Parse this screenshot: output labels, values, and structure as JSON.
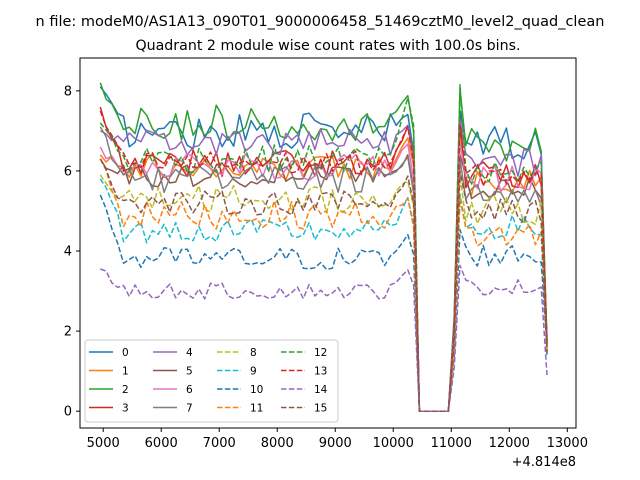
{
  "chart_data": {
    "type": "line",
    "suptitle": "n file: modeM0/AS1A13_090T01_9000006458_51469cztM0_level2_quad_clean",
    "title": "Quadrant 2 module wise count rates with 100.0s bins.",
    "xlabel": "",
    "ylabel": "",
    "x_offset_label": "+4.814e8",
    "xlim": [
      4600,
      13150
    ],
    "ylim": [
      -0.42,
      8.82
    ],
    "xticks": [
      5000,
      6000,
      7000,
      8000,
      9000,
      10000,
      11000,
      12000,
      13000
    ],
    "xtick_labels": [
      "5000",
      "6000",
      "7000",
      "8000",
      "9000",
      "10000",
      "11000",
      "12000",
      "13000"
    ],
    "yticks": [
      0,
      2,
      4,
      6,
      8
    ],
    "ytick_labels": [
      "0",
      "2",
      "4",
      "6",
      "8"
    ],
    "legend_position": "lower-left",
    "segments": {
      "seg1": {
        "start": 4950,
        "end": 10350,
        "step": 100
      },
      "gap_x": [
        10450,
        10550,
        10650,
        10750,
        10850,
        10950
      ],
      "seg2": {
        "start": 11050,
        "end": 12650,
        "step": 100
      }
    },
    "series": [
      {
        "name": "0",
        "color": "#1f77b4",
        "dash": "solid",
        "level1": 7.0,
        "level2": 6.7,
        "amp": 0.45,
        "startv": 8.1,
        "peak": 7.6
      },
      {
        "name": "1",
        "color": "#ff7f0e",
        "dash": "solid",
        "level1": 6.1,
        "level2": 5.7,
        "amp": 0.35,
        "startv": 6.4,
        "peak": 7.2
      },
      {
        "name": "2",
        "color": "#2ca02c",
        "dash": "solid",
        "level1": 7.2,
        "level2": 6.7,
        "amp": 0.45,
        "startv": 8.2,
        "peak": 8.2
      },
      {
        "name": "3",
        "color": "#d62728",
        "dash": "solid",
        "level1": 6.2,
        "level2": 5.9,
        "amp": 0.35,
        "startv": 7.6,
        "peak": 7.5
      },
      {
        "name": "4",
        "color": "#9467bd",
        "dash": "solid",
        "level1": 6.7,
        "level2": 6.2,
        "amp": 0.35,
        "startv": 7.0,
        "peak": 7.4
      },
      {
        "name": "5",
        "color": "#8c564b",
        "dash": "solid",
        "level1": 5.9,
        "level2": 5.6,
        "amp": 0.3,
        "startv": 6.3,
        "peak": 6.5
      },
      {
        "name": "6",
        "color": "#e377c2",
        "dash": "solid",
        "level1": 6.1,
        "level2": 5.8,
        "amp": 0.35,
        "startv": 6.6,
        "peak": 6.8
      },
      {
        "name": "7",
        "color": "#7f7f7f",
        "dash": "solid",
        "level1": 5.8,
        "level2": 5.4,
        "amp": 0.35,
        "startv": 7.1,
        "peak": 6.4
      },
      {
        "name": "8",
        "color": "#bcbd22",
        "dash": "dashed",
        "level1": 5.3,
        "level2": 5.0,
        "amp": 0.35,
        "startv": 5.9,
        "peak": 6.0
      },
      {
        "name": "9",
        "color": "#17becf",
        "dash": "dashed",
        "level1": 4.5,
        "level2": 4.6,
        "amp": 0.3,
        "startv": 5.8,
        "peak": 5.5
      },
      {
        "name": "10",
        "color": "#1f77b4",
        "dash": "dashed",
        "level1": 3.8,
        "level2": 3.9,
        "amp": 0.3,
        "startv": 5.4,
        "peak": 4.6
      },
      {
        "name": "11",
        "color": "#ff7f0e",
        "dash": "dashed",
        "level1": 4.9,
        "level2": 4.4,
        "amp": 0.35,
        "startv": 6.3,
        "peak": 5.4
      },
      {
        "name": "12",
        "color": "#2ca02c",
        "dash": "dashed",
        "level1": 6.3,
        "level2": 5.9,
        "amp": 0.35,
        "startv": 7.2,
        "peak": 8.4
      },
      {
        "name": "13",
        "color": "#d62728",
        "dash": "dashed",
        "level1": 6.2,
        "level2": 5.9,
        "amp": 0.3,
        "startv": 7.5,
        "peak": 7.3
      },
      {
        "name": "14",
        "color": "#9467bd",
        "dash": "dashed",
        "level1": 3.0,
        "level2": 3.1,
        "amp": 0.2,
        "startv": 3.55,
        "peak": 3.7
      },
      {
        "name": "15",
        "color": "#8c564b",
        "dash": "dashed",
        "level1": 5.2,
        "level2": 5.0,
        "amp": 0.3,
        "startv": 6.3,
        "peak": 6.1
      }
    ]
  }
}
